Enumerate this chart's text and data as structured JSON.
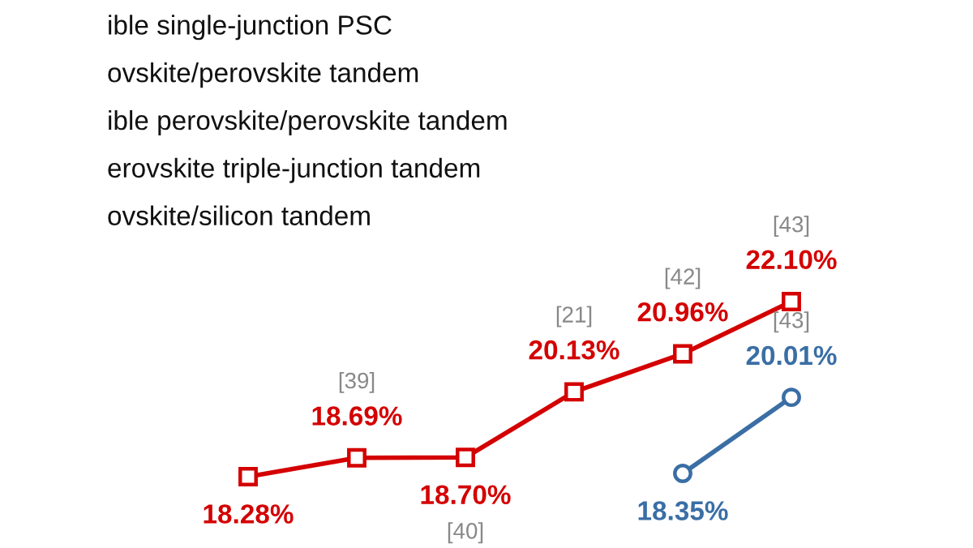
{
  "chart_data": {
    "type": "line",
    "categories": [
      null,
      null,
      null,
      null,
      null,
      null
    ],
    "series": [
      {
        "color": "#d40000",
        "marker": "square",
        "values": [
          18.28,
          18.69,
          18.7,
          20.13,
          20.96,
          22.1
        ],
        "value_labels": [
          "18.28%",
          "18.69%",
          "18.70%",
          "20.13%",
          "20.96%",
          "22.10%"
        ]
      },
      {
        "color": "#3a6ea5",
        "marker": "circle",
        "values": [
          null,
          null,
          null,
          null,
          18.35,
          20.01
        ],
        "value_labels": [
          null,
          null,
          null,
          null,
          "18.35%",
          "20.01%"
        ]
      }
    ],
    "annotations": [
      "ible single-junction PSC",
      "ovskite/perovskite tandem",
      "ible perovskite/perovskite tandem",
      "erovskite triple-junction tandem",
      "ovskite/silicon tandem",
      {
        "text": "[39]",
        "y": 18.69
      },
      {
        "text": "[40]",
        "y": 18.7
      },
      {
        "text": "[21]",
        "y": 20.13
      },
      {
        "text": "[42]",
        "y": 20.96
      },
      {
        "text": "[43]",
        "y": 22.1
      },
      {
        "text": "[43]",
        "y": 20.01
      }
    ]
  }
}
